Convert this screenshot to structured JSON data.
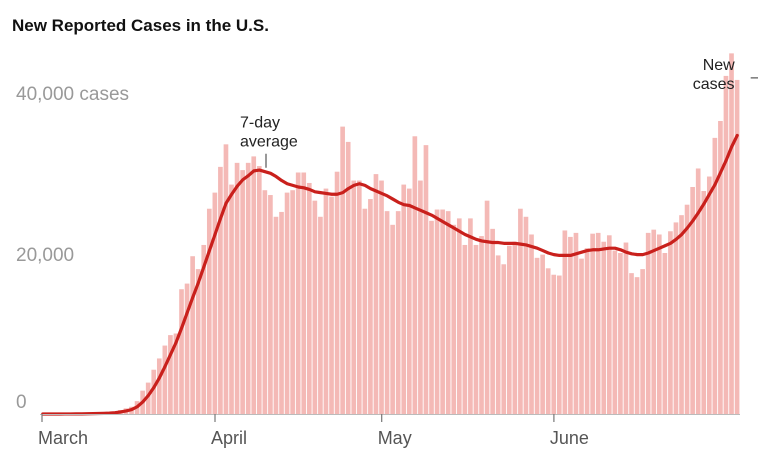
{
  "chart_data": {
    "type": "bar",
    "title": "New Reported Cases in the U.S.",
    "xlabel": "",
    "ylabel": "",
    "ylim": [
      0,
      45000
    ],
    "yticks": [
      {
        "value": 0,
        "label": "0"
      },
      {
        "value": 20000,
        "label": "20,000"
      },
      {
        "value": 40000,
        "label": "40,000 cases"
      }
    ],
    "xticks": [
      {
        "day": 0,
        "label": "March"
      },
      {
        "day": 31,
        "label": "April"
      },
      {
        "day": 61,
        "label": "May"
      },
      {
        "day": 92,
        "label": "June"
      }
    ],
    "grid": false,
    "legend": "none",
    "annotations": [
      {
        "text_lines": [
          "7-day",
          "average"
        ],
        "series": "7-day average",
        "day": 40
      },
      {
        "text_lines": [
          "New",
          "cases"
        ],
        "series": "new cases",
        "day": 120
      }
    ],
    "series": [
      {
        "name": "New cases",
        "chart_type": "bar",
        "color": "#f4b9b6",
        "values": [
          0,
          0,
          0,
          0,
          10,
          20,
          20,
          40,
          70,
          90,
          120,
          140,
          180,
          300,
          500,
          700,
          900,
          1600,
          2900,
          3900,
          5500,
          6900,
          8500,
          9800,
          10000,
          15500,
          16200,
          19600,
          18000,
          21000,
          25500,
          27500,
          30700,
          33500,
          28500,
          31200,
          30300,
          31200,
          32000,
          30800,
          27800,
          27200,
          24500,
          25100,
          27500,
          27800,
          30000,
          30000,
          28700,
          26500,
          24500,
          28000,
          27000,
          30100,
          35700,
          33800,
          29000,
          29000,
          25500,
          26700,
          29800,
          29000,
          25200,
          23500,
          25200,
          28500,
          28000,
          34500,
          29000,
          33400,
          24000,
          25400,
          25400,
          25200,
          23500,
          24300,
          21000,
          24300,
          21000,
          22100,
          26500,
          23000,
          19700,
          18600,
          20900,
          21400,
          25500,
          24500,
          22300,
          19400,
          19800,
          18100,
          17300,
          17200,
          22800,
          22000,
          22500,
          19300,
          20600,
          22400,
          22500,
          21400,
          22200,
          20300,
          20000,
          21300,
          17500,
          17000,
          18000,
          22500,
          22900,
          22300,
          20000,
          22700,
          23800,
          24700,
          26000,
          28200,
          30500,
          27700,
          29500,
          34300,
          36400,
          42000,
          44800,
          41500
        ]
      },
      {
        "name": "7-day average",
        "chart_type": "line",
        "color": "#c9201c",
        "values": [
          0,
          0,
          0,
          0,
          5,
          8,
          12,
          20,
          30,
          45,
          60,
          80,
          110,
          160,
          250,
          380,
          550,
          900,
          1500,
          2300,
          3300,
          4500,
          5900,
          7400,
          8900,
          10700,
          12600,
          14500,
          16300,
          18300,
          20300,
          22300,
          24300,
          26200,
          27300,
          28300,
          29100,
          29600,
          30200,
          30300,
          30100,
          29900,
          29500,
          29000,
          28600,
          28400,
          28200,
          28100,
          27900,
          27600,
          27500,
          27400,
          27300,
          27300,
          27500,
          28000,
          28400,
          28600,
          28400,
          28000,
          27700,
          27400,
          27100,
          26700,
          26300,
          26000,
          25900,
          25600,
          25300,
          25000,
          24700,
          24300,
          23900,
          23500,
          23100,
          22700,
          22300,
          22000,
          21700,
          21500,
          21400,
          21300,
          21300,
          21200,
          21200,
          21200,
          21100,
          21000,
          20800,
          20600,
          20300,
          20000,
          19800,
          19700,
          19700,
          19700,
          19900,
          20100,
          20300,
          20400,
          20400,
          20500,
          20600,
          20600,
          20400,
          20100,
          19900,
          19800,
          19800,
          20000,
          20300,
          20600,
          20900,
          21200,
          21700,
          22300,
          23100,
          24000,
          25000,
          26100,
          27300,
          28500,
          30000,
          31500,
          33200,
          34600
        ]
      }
    ]
  }
}
